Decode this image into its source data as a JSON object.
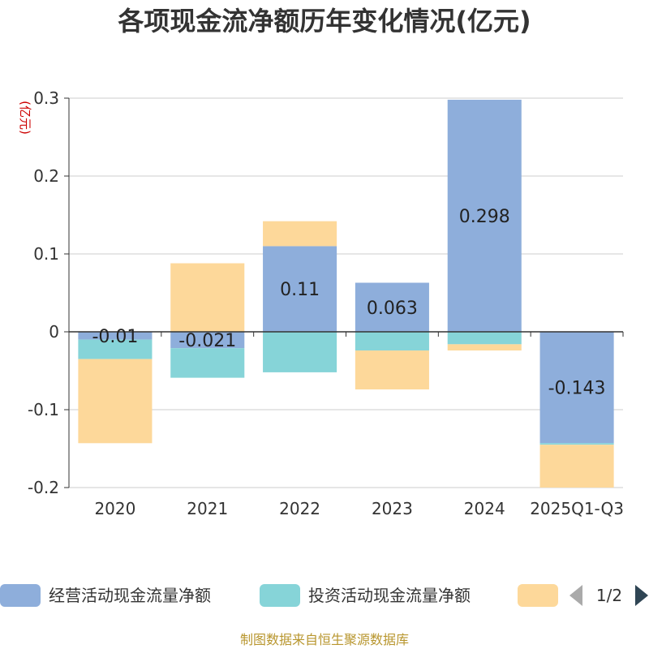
{
  "chart_data": {
    "type": "bar",
    "stacked": true,
    "title": "各项现金流净额历年变化情况(亿元)",
    "unit": "(亿元)",
    "categories": [
      "2020",
      "2021",
      "2022",
      "2023",
      "2024",
      "2025Q1-Q3"
    ],
    "ylim": [
      -0.2,
      0.3
    ],
    "yticks": [
      "-0.2",
      "-0.1",
      "0",
      "0.1",
      "0.2",
      "0.3"
    ],
    "ytick_values": [
      -0.2,
      -0.1,
      0,
      0.1,
      0.2,
      0.3
    ],
    "grid": true,
    "legend_position": "bottom",
    "series": [
      {
        "name": "经营活动现金流量净额",
        "color": "#8eaedb",
        "values": [
          -0.01,
          -0.021,
          0.11,
          0.063,
          0.298,
          -0.143
        ],
        "labels": [
          "-0.01",
          "-0.021",
          "0.11",
          "0.063",
          "0.298",
          "-0.143"
        ]
      },
      {
        "name": "投资活动现金流量净额",
        "color": "#86d4d8",
        "values": [
          -0.025,
          -0.038,
          -0.052,
          -0.024,
          -0.016,
          -0.002
        ]
      },
      {
        "name": "",
        "color": "#fdd89a",
        "values": [
          -0.108,
          0.088,
          0.032,
          -0.05,
          -0.008,
          -0.055
        ]
      }
    ]
  },
  "legend": {
    "page": "1/2"
  },
  "footer": "制图数据来自恒生聚源数据库"
}
